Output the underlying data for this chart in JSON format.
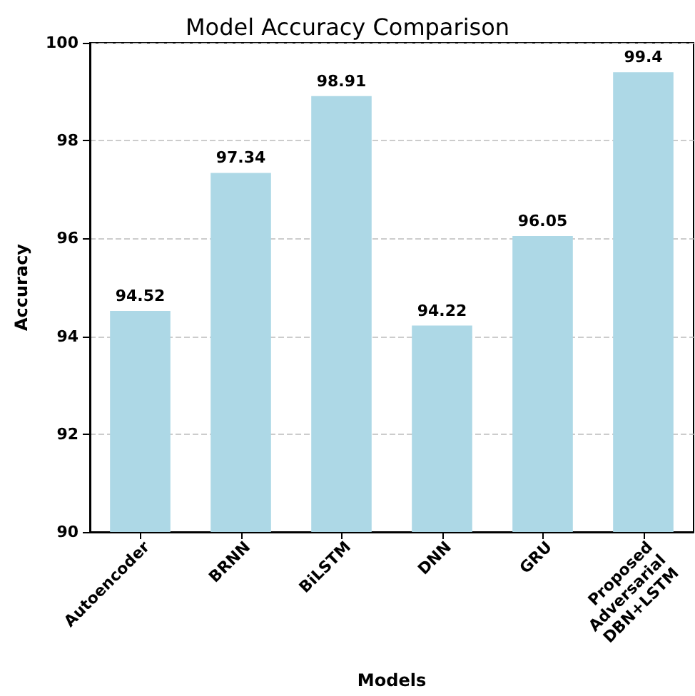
{
  "chart_data": {
    "type": "bar",
    "title": "Model Accuracy Comparison",
    "xlabel": "Models",
    "ylabel": "Accuracy",
    "categories": [
      "Autoencoder",
      "BRNN",
      "BiLSTM",
      "DNN",
      "GRU",
      "Proposed Adversarial DBN+LSTM"
    ],
    "values": [
      94.52,
      97.34,
      98.91,
      94.22,
      96.05,
      99.4
    ],
    "color": "#add8e6",
    "ylim": [
      90,
      100
    ],
    "yticks": [
      90,
      92,
      94,
      96,
      98,
      100
    ],
    "grid": "y",
    "data_labels": true
  }
}
